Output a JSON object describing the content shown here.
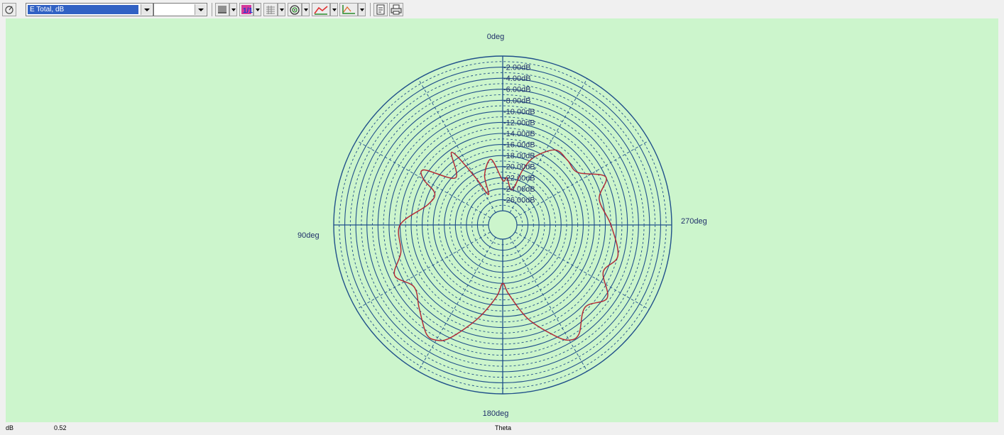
{
  "toolbar": {
    "quantity_combo": "E Total, dB",
    "second_combo": "",
    "buttons": [
      {
        "name": "polar-mode-button",
        "icon": "polar-icon"
      },
      {
        "name": "color-button",
        "icon": "color-icon"
      },
      {
        "name": "scale-button",
        "icon": "scale-icon"
      },
      {
        "name": "grid-button",
        "icon": "grid-icon"
      },
      {
        "name": "target-button",
        "icon": "target-icon"
      },
      {
        "name": "curve-button",
        "icon": "curve-icon"
      },
      {
        "name": "axes-button",
        "icon": "axes-icon"
      },
      {
        "name": "copy-button",
        "icon": "copy-icon"
      },
      {
        "name": "print-button",
        "icon": "print-icon"
      }
    ]
  },
  "status": {
    "unit": "dB",
    "value": "0.52",
    "axis_label": "Theta"
  },
  "chart_data": {
    "type": "polar",
    "angle_labels": {
      "top": "0deg",
      "left": "90deg",
      "bottom": "180deg",
      "right": "270deg"
    },
    "angle_direction": "counter-clockwise",
    "radial_unit": "dB",
    "r_max_at_rim": 0,
    "r_min_at_center_hole": -28,
    "ring_labels": [
      "-2.00dB",
      "-4.00dB",
      "-6.00dB",
      "-8.00dB",
      "-10.00dB",
      "-12.00dB",
      "-14.00dB",
      "-16.00dB",
      "-18.00dB",
      "-20.00dB",
      "-22.00dB",
      "-24.00dB",
      "-26.00dB"
    ],
    "ring_values": [
      -2,
      -4,
      -6,
      -8,
      -10,
      -12,
      -14,
      -16,
      -18,
      -20,
      -22,
      -24,
      -26
    ],
    "colors": {
      "background": "#ccf5cc",
      "grid": "#20508a",
      "trace": "#d02020",
      "trace2": "#1a1a6a"
    },
    "series": [
      {
        "theta_deg": [
          0,
          10,
          20,
          25,
          30,
          35,
          45,
          55,
          60,
          65,
          75,
          90,
          105,
          115,
          125,
          135,
          145,
          150,
          155,
          165,
          175,
          180,
          185,
          195,
          205,
          210,
          215,
          225,
          235,
          245,
          255,
          270,
          285,
          295,
          305,
          315,
          325,
          335,
          340,
          345,
          355
        ],
        "values_db": [
          -22.5,
          -18.5,
          -21.0,
          -24.5,
          -20.5,
          -14.5,
          -18.5,
          -13.2,
          -14.0,
          -17.0,
          -16.5,
          -12.0,
          -11.5,
          -9.0,
          -11.0,
          -9.2,
          -6.5,
          -6.5,
          -8.0,
          -13.0,
          -17.5,
          -20.0,
          -18.0,
          -13.0,
          -8.5,
          -6.5,
          -6.5,
          -9.5,
          -7.5,
          -10.5,
          -9.0,
          -11.0,
          -12.5,
          -10.0,
          -14.0,
          -14.0,
          -14.0,
          -17.0,
          -20.0,
          -24.0,
          -22.0
        ]
      }
    ]
  }
}
